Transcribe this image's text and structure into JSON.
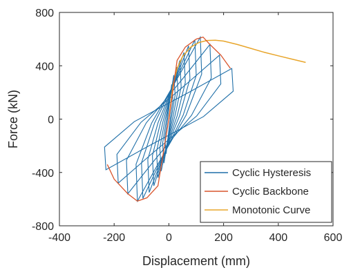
{
  "chart_data": {
    "type": "line",
    "xlabel": "Displacement (mm)",
    "ylabel": "Force (kN)",
    "xlim": [
      -400,
      600
    ],
    "ylim": [
      -800,
      800
    ],
    "xticks": [
      "-400",
      "-200",
      "0",
      "200",
      "400",
      "600"
    ],
    "yticks": [
      "-800",
      "-400",
      "0",
      "400",
      "800"
    ],
    "grid": false,
    "legend_position": "bottom-right",
    "series": [
      {
        "name": "Cyclic Hysteresis",
        "color": "#1f6fa8",
        "loops": [
          {
            "amp": 10,
            "fmax": 260
          },
          {
            "amp": 18,
            "fmax": 330
          },
          {
            "amp": 28,
            "fmax": 390
          },
          {
            "amp": 40,
            "fmax": 440
          },
          {
            "amp": 55,
            "fmax": 500
          },
          {
            "amp": 72,
            "fmax": 550
          },
          {
            "amp": 95,
            "fmax": 595
          },
          {
            "amp": 115,
            "fmax": 615
          },
          {
            "amp": 150,
            "fmax": 560
          },
          {
            "amp": 185,
            "fmax": 480
          },
          {
            "amp": 230,
            "fmax": 380
          }
        ]
      },
      {
        "name": "Cyclic Backbone",
        "color": "#d9542b",
        "x": [
          -225,
          -200,
          -150,
          -115,
          -80,
          -40,
          0,
          30,
          60,
          100,
          125,
          150,
          190,
          225
        ],
        "y": [
          -340,
          -450,
          -560,
          -615,
          -590,
          -500,
          0,
          440,
          540,
          600,
          615,
          560,
          480,
          380
        ]
      },
      {
        "name": "Monotonic Curve",
        "color": "#e8a52a",
        "x": [
          0,
          15,
          30,
          50,
          80,
          110,
          140,
          170,
          200,
          250,
          300,
          350,
          400,
          450,
          500
        ],
        "y": [
          0,
          250,
          380,
          470,
          540,
          575,
          590,
          592,
          585,
          560,
          530,
          500,
          475,
          450,
          425
        ]
      }
    ]
  }
}
